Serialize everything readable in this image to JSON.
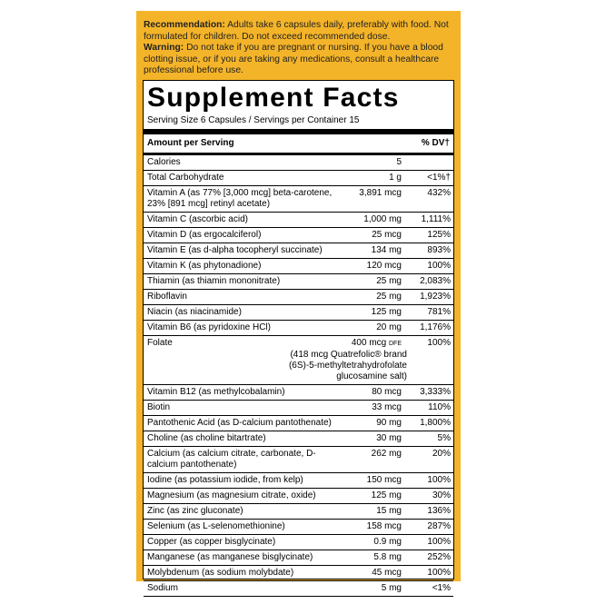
{
  "header": {
    "recommendation_label": "Recommendation:",
    "recommendation": "Adults take 6 capsules daily, preferably with food. Not formulated for children. Do not exceed recommended dose.",
    "warning_label": "Warning:",
    "warning": "Do not take if you are pregnant or nursing. If you have a blood clotting issue, or if you are taking any medications, consult a healthcare professional before use."
  },
  "facts": {
    "title": "Supplement Facts",
    "serving": "Serving Size 6 Capsules / Servings per Container 15",
    "amount_heading": "Amount per Serving",
    "dv_heading": "% DV†",
    "rows": [
      {
        "name": "Calories",
        "amount": "5",
        "dv": ""
      },
      {
        "name": "Total Carbohydrate",
        "amount": "1 g",
        "dv": "<1%†"
      },
      {
        "name": "Vitamin A (as 77% [3,000 mcg] beta-carotene, 23% [891 mcg] retinyl acetate)",
        "amount": "3,891 mcg",
        "dv": "432%"
      },
      {
        "name": "Vitamin C (ascorbic acid)",
        "amount": "1,000 mg",
        "dv": "1,111%"
      },
      {
        "name": "Vitamin D (as ergocalciferol)",
        "amount": "25 mcg",
        "dv": "125%"
      },
      {
        "name": "Vitamin E (as d-alpha tocopheryl succinate)",
        "amount": "134 mg",
        "dv": "893%"
      },
      {
        "name": "Vitamin K (as phytonadione)",
        "amount": "120 mcg",
        "dv": "100%"
      },
      {
        "name": "Thiamin (as thiamin mononitrate)",
        "amount": "25 mg",
        "dv": "2,083%"
      },
      {
        "name": "Riboflavin",
        "amount": "25 mg",
        "dv": "1,923%"
      },
      {
        "name": "Niacin (as niacinamide)",
        "amount": "125 mg",
        "dv": "781%"
      },
      {
        "name": "Vitamin B6 (as pyridoxine HCl)",
        "amount": "20 mg",
        "dv": "1,176%"
      },
      {
        "name": "Folate",
        "amount": "400 mcg",
        "unit_note": "DFE",
        "dv": "100%",
        "note": "(418 mcg Quatrefolic® brand (6S)-5-methyltetrahydrofolate glucosamine salt)"
      },
      {
        "name": "Vitamin B12 (as methylcobalamin)",
        "amount": "80 mcg",
        "dv": "3,333%"
      },
      {
        "name": "Biotin",
        "amount": "33 mcg",
        "dv": "110%"
      },
      {
        "name": "Pantothenic Acid (as D-calcium pantothenate)",
        "amount": "90 mg",
        "dv": "1,800%"
      },
      {
        "name": "Choline (as choline bitartrate)",
        "amount": "30 mg",
        "dv": "5%"
      },
      {
        "name": "Calcium (as calcium citrate, carbonate, D-calcium pantothenate)",
        "amount": "262 mg",
        "dv": "20%"
      },
      {
        "name": "Iodine (as potassium iodide, from kelp)",
        "amount": "150 mcg",
        "dv": "100%"
      },
      {
        "name": "Magnesium (as magnesium citrate, oxide)",
        "amount": "125 mg",
        "dv": "30%"
      },
      {
        "name": "Zinc (as zinc gluconate)",
        "amount": "15 mg",
        "dv": "136%"
      },
      {
        "name": "Selenium (as L-selenomethionine)",
        "amount": "158 mcg",
        "dv": "287%"
      },
      {
        "name": "Copper (as copper bisglycinate)",
        "amount": "0.9 mg",
        "dv": "100%"
      },
      {
        "name": "Manganese (as manganese bisglycinate)",
        "amount": "5.8 mg",
        "dv": "252%"
      },
      {
        "name": "Molybdenum (as sodium molybdate)",
        "amount": "45 mcg",
        "dv": "100%"
      },
      {
        "name": "Sodium",
        "amount": "5 mg",
        "dv": "<1%"
      }
    ]
  }
}
